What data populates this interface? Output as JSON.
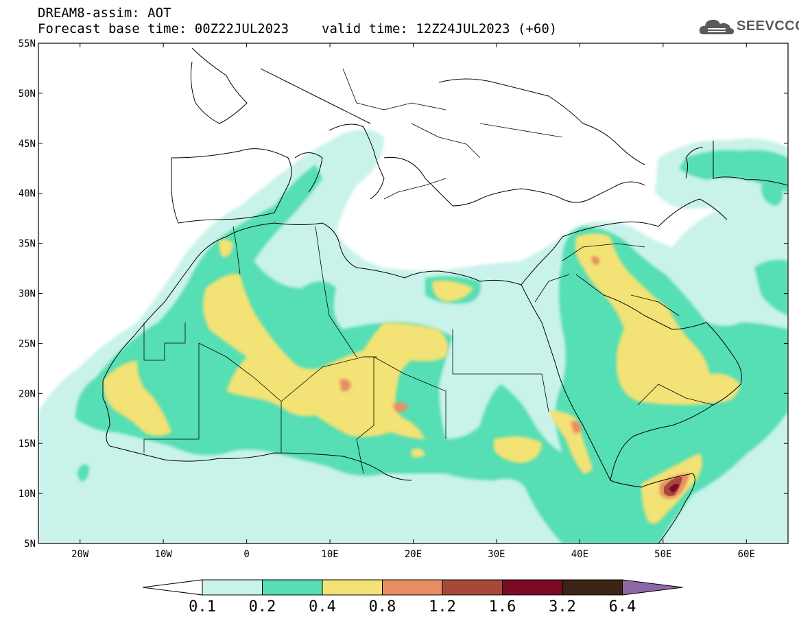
{
  "header": {
    "title": "DREAM8-assim: AOT",
    "base_time": "Forecast base time: 00Z22JUL2023",
    "valid_time": "valid time: 12Z24JUL2023 (+60)"
  },
  "logo": {
    "text": "SEEVCCC",
    "icon": "cloud-logo-icon"
  },
  "map": {
    "lon_range": [
      -25,
      65
    ],
    "lat_range": [
      5,
      55
    ],
    "lon_ticks": [
      {
        "value": -20,
        "label": "20W"
      },
      {
        "value": -10,
        "label": "10W"
      },
      {
        "value": 0,
        "label": "0"
      },
      {
        "value": 10,
        "label": "10E"
      },
      {
        "value": 20,
        "label": "20E"
      },
      {
        "value": 30,
        "label": "30E"
      },
      {
        "value": 40,
        "label": "40E"
      },
      {
        "value": 50,
        "label": "50E"
      },
      {
        "value": 60,
        "label": "60E"
      }
    ],
    "lat_ticks": [
      {
        "value": 5,
        "label": "5N"
      },
      {
        "value": 10,
        "label": "10N"
      },
      {
        "value": 15,
        "label": "15N"
      },
      {
        "value": 20,
        "label": "20N"
      },
      {
        "value": 25,
        "label": "25N"
      },
      {
        "value": 30,
        "label": "30N"
      },
      {
        "value": 35,
        "label": "35N"
      },
      {
        "value": 40,
        "label": "40N"
      },
      {
        "value": 45,
        "label": "45N"
      },
      {
        "value": 50,
        "label": "50N"
      },
      {
        "value": 55,
        "label": "55N"
      }
    ]
  },
  "colorbar": {
    "levels": [
      "0.1",
      "0.2",
      "0.4",
      "0.8",
      "1.2",
      "1.6",
      "3.2",
      "6.4"
    ],
    "colors": [
      "#c9f2ea",
      "#56deb4",
      "#f3e275",
      "#e98d62",
      "#a6493b",
      "#7a0a26",
      "#3b2415"
    ],
    "under_color": "#ffffff",
    "over_color": "#8f67a6"
  },
  "palette": {
    "c1": "#c9f2ea",
    "c2": "#56deb4",
    "c3": "#f3e275",
    "c4": "#e98d62",
    "c5": "#a6493b",
    "c6": "#7a0a26"
  }
}
